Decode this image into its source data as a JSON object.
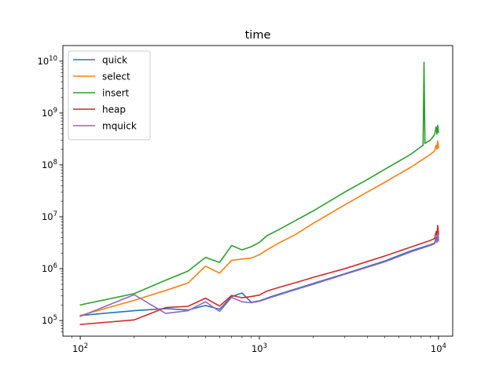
{
  "chart_data": {
    "type": "line",
    "title": "time",
    "xlabel": "",
    "ylabel": "",
    "xscale": "log",
    "yscale": "log",
    "xlim": [
      80,
      12000
    ],
    "ylim": [
      50000,
      20000000000
    ],
    "xticks": [
      {
        "value": 100,
        "base": "10",
        "exp": "2"
      },
      {
        "value": 1000,
        "base": "10",
        "exp": "3"
      },
      {
        "value": 10000,
        "base": "10",
        "exp": "4"
      }
    ],
    "yticks": [
      {
        "value": 100000,
        "base": "10",
        "exp": "5"
      },
      {
        "value": 1000000,
        "base": "10",
        "exp": "6"
      },
      {
        "value": 10000000,
        "base": "10",
        "exp": "7"
      },
      {
        "value": 100000000,
        "base": "10",
        "exp": "8"
      },
      {
        "value": 1000000000,
        "base": "10",
        "exp": "9"
      },
      {
        "value": 10000000000,
        "base": "10",
        "exp": "10"
      }
    ],
    "grid": false,
    "legend_position": "top-left",
    "series": [
      {
        "name": "quick",
        "color": "#1f77b4",
        "points": [
          [
            100,
            125000
          ],
          [
            200,
            155000
          ],
          [
            300,
            170000
          ],
          [
            400,
            160000
          ],
          [
            500,
            195000
          ],
          [
            600,
            165000
          ],
          [
            700,
            290000
          ],
          [
            800,
            340000
          ],
          [
            900,
            225000
          ],
          [
            1000,
            240000
          ],
          [
            1200,
            300000
          ],
          [
            1500,
            380000
          ],
          [
            2000,
            520000
          ],
          [
            3000,
            800000
          ],
          [
            5000,
            1400000
          ],
          [
            7000,
            2200000
          ],
          [
            9000,
            2900000
          ],
          [
            9500,
            3100000
          ],
          [
            9700,
            4000000
          ],
          [
            9800,
            3300000
          ],
          [
            9900,
            5500000
          ],
          [
            10000,
            3700000
          ]
        ]
      },
      {
        "name": "select",
        "color": "#ff7f0e",
        "points": [
          [
            100,
            125000
          ],
          [
            200,
            245000
          ],
          [
            300,
            380000
          ],
          [
            400,
            530000
          ],
          [
            500,
            1120000
          ],
          [
            600,
            820000
          ],
          [
            700,
            1450000
          ],
          [
            900,
            1600000
          ],
          [
            1000,
            1850000
          ],
          [
            1100,
            2300000
          ],
          [
            1300,
            3200000
          ],
          [
            1600,
            4600000
          ],
          [
            2000,
            7500000
          ],
          [
            3000,
            17000000
          ],
          [
            4000,
            30000000
          ],
          [
            5000,
            46000000
          ],
          [
            7000,
            90000000
          ],
          [
            8500,
            140000000
          ],
          [
            9000,
            160000000
          ],
          [
            9500,
            185000000
          ],
          [
            9700,
            240000000
          ],
          [
            9800,
            200000000
          ],
          [
            9900,
            290000000
          ],
          [
            10000,
            210000000
          ]
        ]
      },
      {
        "name": "insert",
        "color": "#2ca02c",
        "points": [
          [
            100,
            200000
          ],
          [
            200,
            330000
          ],
          [
            300,
            600000
          ],
          [
            400,
            900000
          ],
          [
            500,
            1650000
          ],
          [
            600,
            1320000
          ],
          [
            700,
            2800000
          ],
          [
            800,
            2300000
          ],
          [
            900,
            2650000
          ],
          [
            1000,
            3200000
          ],
          [
            1100,
            4300000
          ],
          [
            1300,
            5800000
          ],
          [
            1500,
            7600000
          ],
          [
            2000,
            13000000
          ],
          [
            3000,
            30000000
          ],
          [
            4000,
            52000000
          ],
          [
            5000,
            82000000
          ],
          [
            7000,
            160000000
          ],
          [
            8200,
            240000000
          ],
          [
            8300,
            9500000000
          ],
          [
            8400,
            260000000
          ],
          [
            9000,
            300000000
          ],
          [
            9500,
            380000000
          ],
          [
            9700,
            540000000
          ],
          [
            9800,
            390000000
          ],
          [
            9900,
            580000000
          ],
          [
            10000,
            420000000
          ]
        ]
      },
      {
        "name": "heap",
        "color": "#d62728",
        "points": [
          [
            100,
            84000
          ],
          [
            200,
            103000
          ],
          [
            300,
            178000
          ],
          [
            400,
            188000
          ],
          [
            500,
            270000
          ],
          [
            600,
            190000
          ],
          [
            700,
            305000
          ],
          [
            800,
            275000
          ],
          [
            900,
            290000
          ],
          [
            1000,
            310000
          ],
          [
            1100,
            370000
          ],
          [
            1300,
            440000
          ],
          [
            1600,
            540000
          ],
          [
            2000,
            680000
          ],
          [
            3000,
            1000000
          ],
          [
            5000,
            1750000
          ],
          [
            7000,
            2600000
          ],
          [
            9000,
            3500000
          ],
          [
            9500,
            3800000
          ],
          [
            9700,
            5200000
          ],
          [
            9800,
            4300000
          ],
          [
            9900,
            6800000
          ],
          [
            10000,
            4600000
          ]
        ]
      },
      {
        "name": "mquick",
        "color": "#9467bd",
        "points": [
          [
            100,
            120000
          ],
          [
            200,
            315000
          ],
          [
            300,
            137000
          ],
          [
            400,
            155000
          ],
          [
            500,
            230000
          ],
          [
            600,
            150000
          ],
          [
            700,
            280000
          ],
          [
            800,
            230000
          ],
          [
            900,
            220000
          ],
          [
            1000,
            235000
          ],
          [
            1200,
            290000
          ],
          [
            1500,
            370000
          ],
          [
            2000,
            500000
          ],
          [
            3000,
            780000
          ],
          [
            5000,
            1350000
          ],
          [
            7000,
            2100000
          ],
          [
            9000,
            2800000
          ],
          [
            9500,
            3000000
          ],
          [
            9700,
            3600000
          ],
          [
            9800,
            3200000
          ],
          [
            9900,
            4800000
          ],
          [
            10000,
            3400000
          ]
        ]
      }
    ]
  }
}
